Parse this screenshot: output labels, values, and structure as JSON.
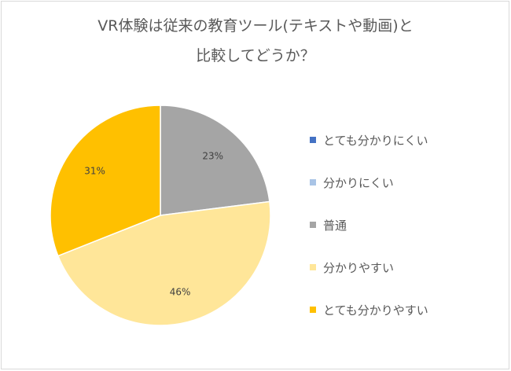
{
  "chart_data": {
    "type": "pie",
    "title": [
      "VR体験は従来の教育ツール(テキストや動画)と",
      "比較してどうか？"
    ],
    "categories": [
      "とても分かりにくい",
      "分かりにくい",
      "普通",
      "分かりやすい",
      "とても分かりやすい"
    ],
    "values": [
      0,
      0,
      23,
      46,
      31
    ],
    "data_labels": [
      "",
      "",
      "23%",
      "46%",
      "31%"
    ],
    "colors": [
      "#4472c4",
      "#a9c4e6",
      "#a5a5a5",
      "#ffe699",
      "#ffc000"
    ],
    "legend_position": "right",
    "start_angle_deg": 0,
    "direction": "clockwise"
  }
}
